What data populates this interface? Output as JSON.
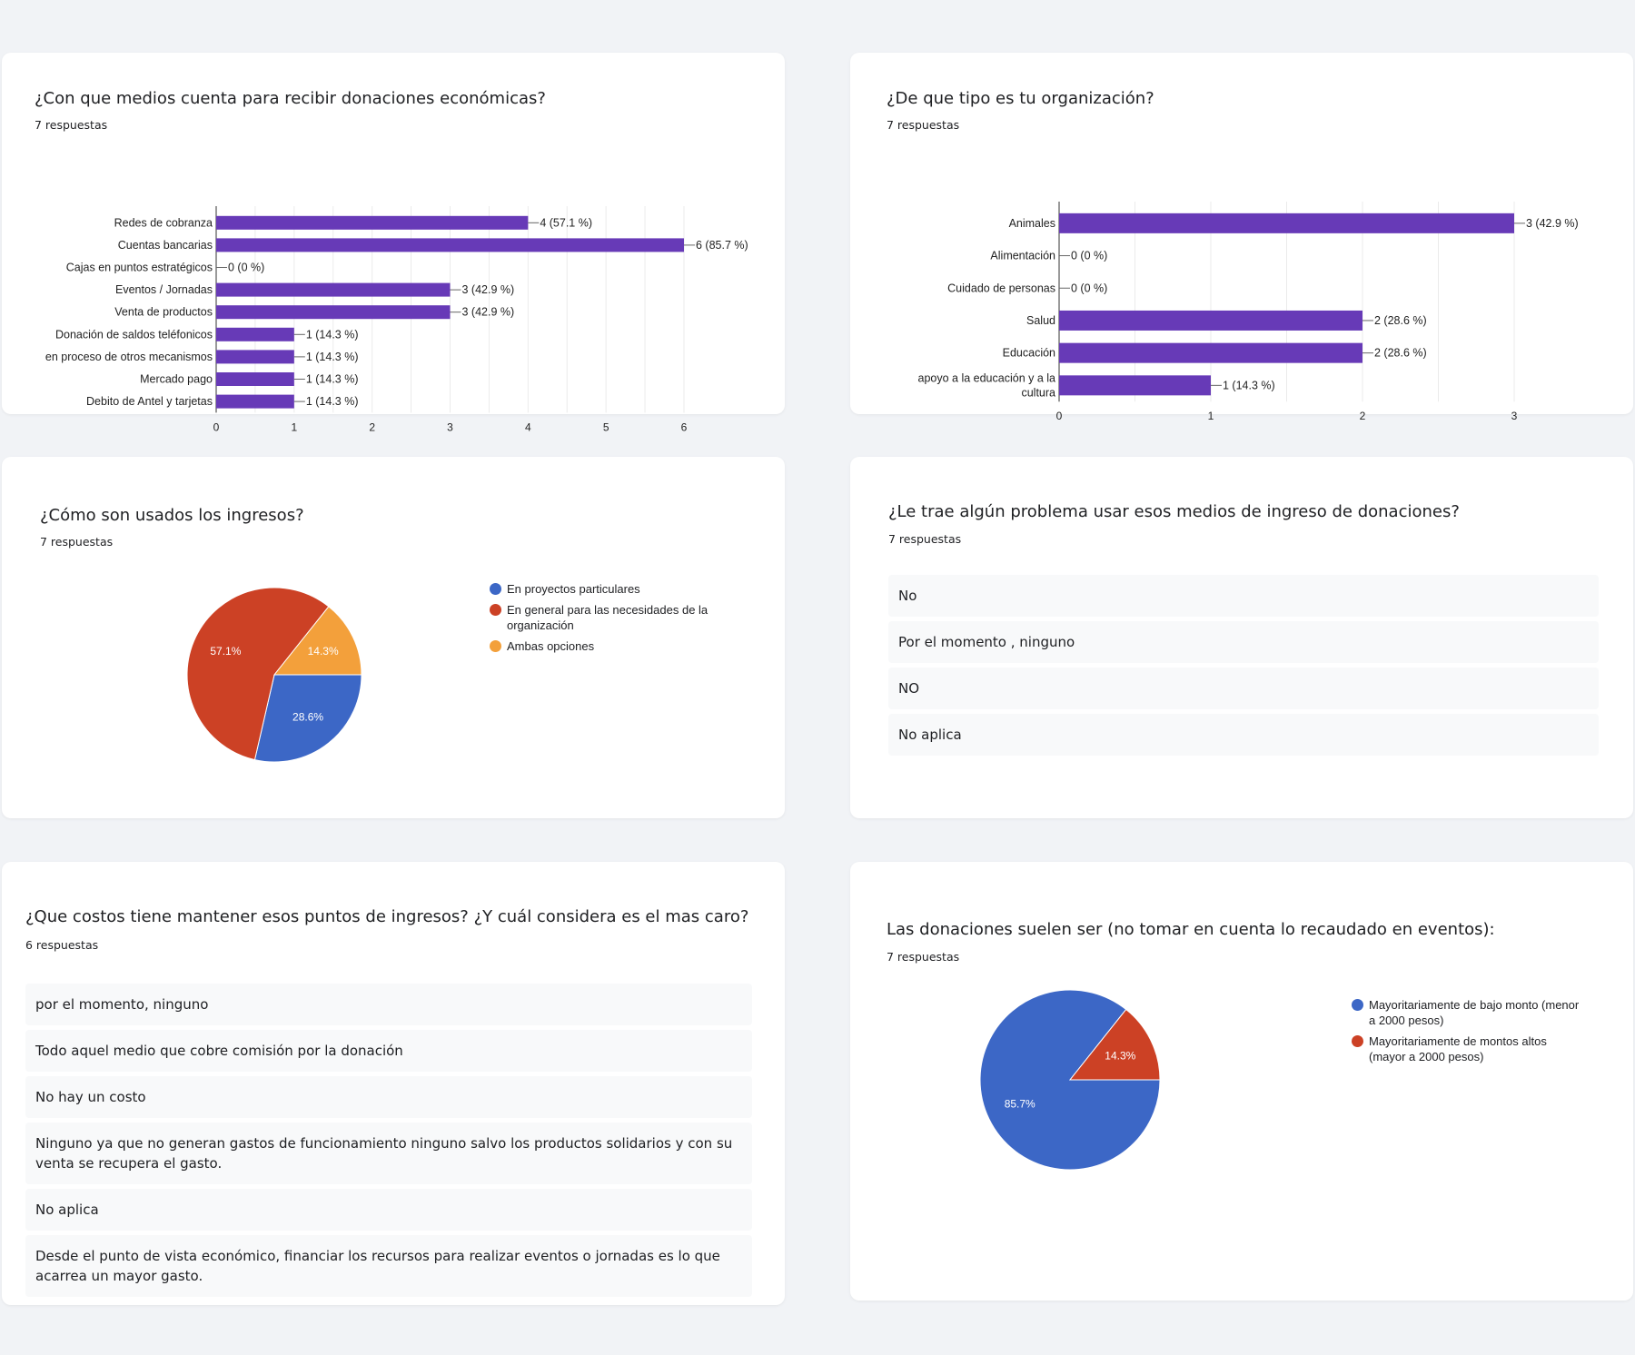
{
  "cards": [
    {
      "title": "¿Con que medios cuenta para recibir donaciones económicas?",
      "responses": "7 respuestas",
      "chart_data": {
        "type": "bar",
        "orientation": "horizontal",
        "categories": [
          "Redes de cobranza",
          "Cuentas bancarias",
          "Cajas en puntos estratégicos",
          "Eventos / Jornadas",
          "Venta de productos",
          "Donación de saldos teléfonicos",
          "en proceso de otros mecanismos",
          "Mercado pago",
          "Debito de Antel y tarjetas"
        ],
        "values": [
          4,
          6,
          0,
          3,
          3,
          1,
          1,
          1,
          1
        ],
        "value_labels": [
          "4 (57.1 %)",
          "6 (85.7 %)",
          "0 (0 %)",
          "3 (42.9 %)",
          "3 (42.9 %)",
          "1 (14.3 %)",
          "1 (14.3 %)",
          "1 (14.3 %)",
          "1 (14.3 %)"
        ],
        "xlim": [
          0,
          6
        ],
        "ticks": [
          "0",
          "1",
          "2",
          "3",
          "4",
          "5",
          "6"
        ],
        "grid": true,
        "color": "#673ab7"
      }
    },
    {
      "title": "¿De que tipo es tu organización?",
      "responses": "7 respuestas",
      "chart_data": {
        "type": "bar",
        "orientation": "horizontal",
        "categories": [
          "Animales",
          "Alimentación",
          "Cuidado de personas",
          "Salud",
          "Educación",
          "apoyo a la educación y a la cultura"
        ],
        "category_lines": [
          [
            "Animales"
          ],
          [
            "Alimentación"
          ],
          [
            "Cuidado de personas"
          ],
          [
            "Salud"
          ],
          [
            "Educación"
          ],
          [
            "apoyo a la educación y a la",
            "cultura"
          ]
        ],
        "values": [
          3,
          0,
          0,
          2,
          2,
          1
        ],
        "value_labels": [
          "3 (42.9 %)",
          "0 (0 %)",
          "0 (0 %)",
          "2 (28.6 %)",
          "2 (28.6 %)",
          "1 (14.3 %)"
        ],
        "xlim": [
          0,
          3
        ],
        "ticks": [
          "0",
          "1",
          "2",
          "3"
        ],
        "grid": true,
        "color": "#673ab7"
      }
    },
    {
      "title": "¿Cómo son usados los ingresos?",
      "responses": "7 respuestas",
      "chart_data": {
        "type": "pie",
        "slices": [
          {
            "label": "En proyectos particulares",
            "value": 28.6,
            "display": "28.6%",
            "color": "#3c67c6"
          },
          {
            "label": "En general para las necesidades de la organización",
            "value": 57.1,
            "display": "57.1%",
            "color": "#cc4125"
          },
          {
            "label": "Ambas opciones",
            "value": 14.3,
            "display": "14.3%",
            "color": "#f3a03b"
          }
        ],
        "legend_lines": [
          [
            "En proyectos particulares"
          ],
          [
            "En general para las necesidades de la",
            "organización"
          ],
          [
            "Ambas opciones"
          ]
        ],
        "legend": "right"
      }
    },
    {
      "title": "¿Le trae algún problema usar esos medios de ingreso de donaciones?",
      "responses": "7 respuestas",
      "answers": [
        "No",
        "Por el momento , ninguno",
        "NO",
        "No aplica"
      ]
    },
    {
      "title": "¿Que costos tiene mantener esos puntos de ingresos? ¿Y cuál considera es el mas caro?",
      "responses": "6 respuestas",
      "answers": [
        "por el momento, ninguno",
        "Todo aquel medio que cobre comisión por la donación",
        "No hay un costo",
        "Ninguno ya que no generan gastos de funcionamiento ninguno salvo los productos solidarios y con su venta se recupera el gasto.",
        "No aplica",
        "Desde el punto de vista económico, financiar los recursos para realizar eventos o jornadas es lo que acarrea un mayor gasto."
      ]
    },
    {
      "title": "Las donaciones suelen ser (no tomar en cuenta lo recaudado en eventos):",
      "responses": "7 respuestas",
      "chart_data": {
        "type": "pie",
        "slices": [
          {
            "label": "Mayoritariamente de bajo monto (menor a 2000 pesos)",
            "value": 85.7,
            "display": "85.7%",
            "color": "#3c67c6"
          },
          {
            "label": "Mayoritariamente de montos altos (mayor a 2000 pesos)",
            "value": 14.3,
            "display": "14.3%",
            "color": "#cc4125"
          }
        ],
        "legend_lines": [
          [
            "Mayoritariamente de bajo monto (menor",
            "a 2000 pesos)"
          ],
          [
            "Mayoritariamente de montos altos",
            "(mayor a 2000 pesos)"
          ]
        ],
        "legend": "right"
      }
    }
  ]
}
